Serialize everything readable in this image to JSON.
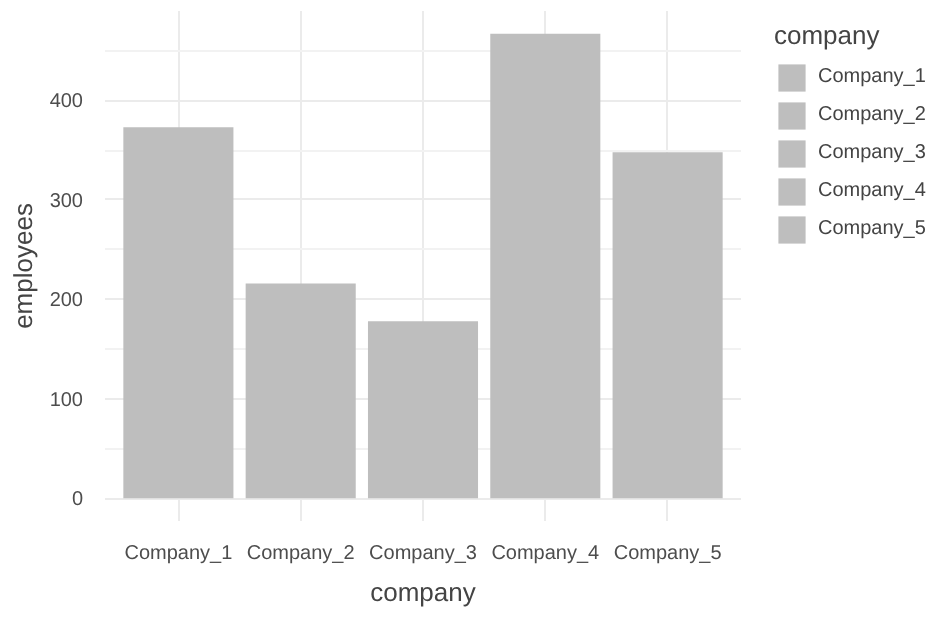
{
  "chart_data": {
    "type": "bar",
    "xlabel": "company",
    "ylabel": "employees",
    "legend_title": "company",
    "categories": [
      "Company_1",
      "Company_2",
      "Company_3",
      "Company_4",
      "Company_5"
    ],
    "series": [
      {
        "name": "Company_1",
        "color": "#bebebe",
        "values": [
          373,
          null,
          null,
          null,
          null
        ]
      },
      {
        "name": "Company_2",
        "color": "#bebebe",
        "values": [
          null,
          216,
          null,
          null,
          null
        ]
      },
      {
        "name": "Company_3",
        "color": "#bebebe",
        "values": [
          null,
          null,
          178,
          null,
          null
        ]
      },
      {
        "name": "Company_4",
        "color": "#bebebe",
        "values": [
          null,
          null,
          null,
          467,
          null
        ]
      },
      {
        "name": "Company_5",
        "color": "#bebebe",
        "values": [
          null,
          null,
          null,
          null,
          348
        ]
      }
    ],
    "ylim": [
      -23,
      490
    ],
    "yticks": [
      0,
      100,
      200,
      300,
      400
    ],
    "grid": true,
    "legend": "right"
  }
}
